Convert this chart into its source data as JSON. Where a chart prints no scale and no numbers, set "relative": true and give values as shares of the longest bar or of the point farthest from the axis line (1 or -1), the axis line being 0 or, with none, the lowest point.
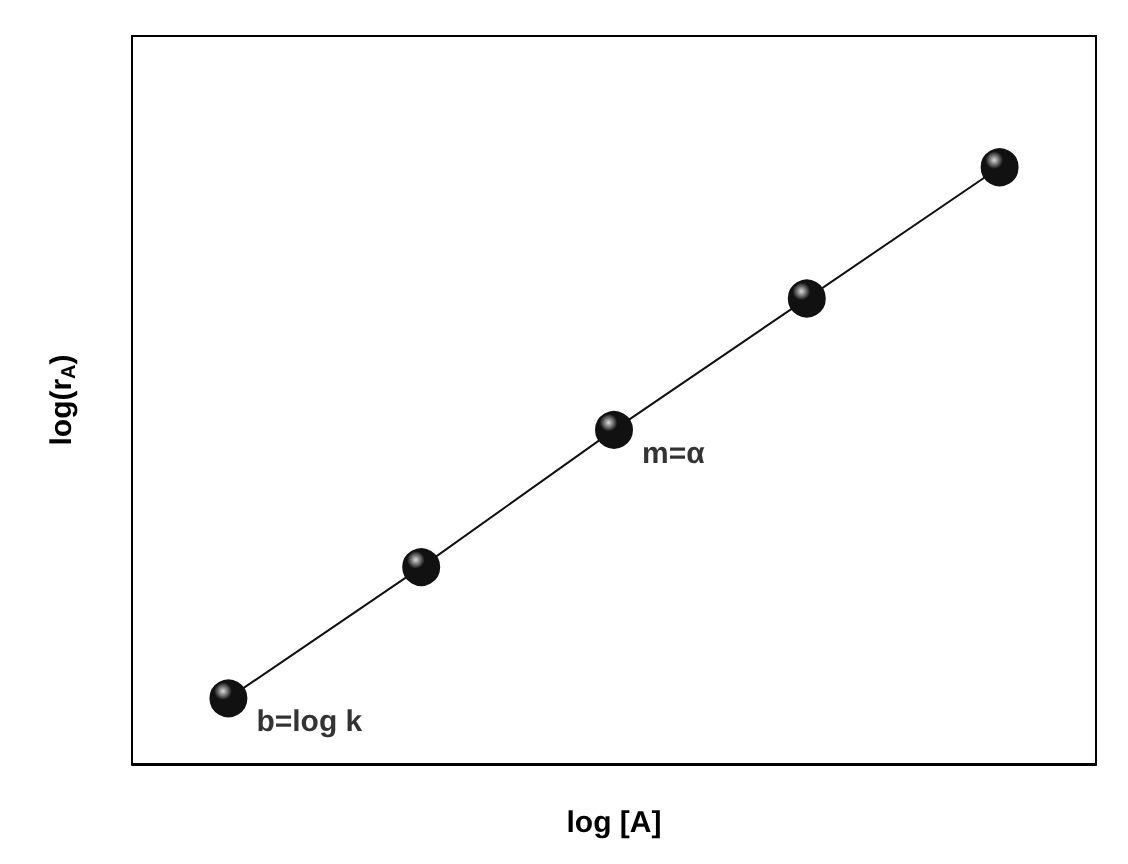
{
  "chart_data": {
    "type": "line",
    "relative": true,
    "xlabel": "log [A]",
    "ylabel": "log(r$_{A}$)",
    "categories": [
      null,
      null,
      null,
      null,
      null
    ],
    "series": [
      {
        "color": "#111111",
        "values": [
          0.11,
          0.33,
          0.56,
          0.78,
          1
        ]
      }
    ],
    "marker": "circle",
    "line_style": "solid",
    "grid": false,
    "annotations": [
      "b=log k",
      "m=α"
    ]
  }
}
